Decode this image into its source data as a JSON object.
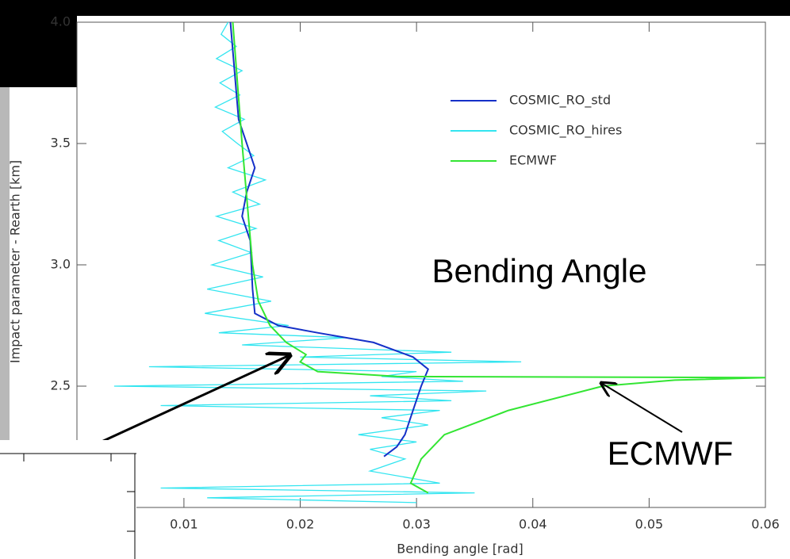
{
  "chart_data": {
    "type": "line",
    "x_label": "Bending angle [rad]",
    "y_label": "Impact parameter - Rearth [km]",
    "xlim": [
      0.0008,
      0.06
    ],
    "xticks": [
      0.01,
      0.02,
      0.03,
      0.04,
      0.05,
      0.06
    ],
    "ylim": [
      2.0,
      4.0
    ],
    "yticks": [
      2.5,
      {
        "value": 3,
        "label": "3.0"
      },
      3.5,
      {
        "value": 4,
        "label": "4.0"
      }
    ],
    "legend": "upper right",
    "annotations": [
      "Bending Angle",
      "ECMWF"
    ],
    "series": [
      {
        "name": "COSMIC_RO_hires",
        "color": "#33e5f0",
        "x": [
          0.0138,
          0.0132,
          0.0145,
          0.0128,
          0.015,
          0.0131,
          0.0148,
          0.0127,
          0.0152,
          0.0133,
          0.0146,
          0.016,
          0.0138,
          0.017,
          0.0142,
          0.0165,
          0.0128,
          0.0162,
          0.013,
          0.0158,
          0.0124,
          0.0168,
          0.012,
          0.0175,
          0.0118,
          0.019,
          0.013,
          0.024,
          0.015,
          0.033,
          0.02,
          0.039,
          0.007,
          0.03,
          0.027,
          0.034,
          0.004,
          0.036,
          0.026,
          0.033,
          0.008,
          0.032,
          0.027,
          0.031,
          0.025,
          0.03,
          0.026,
          0.029,
          0.026,
          0.032,
          0.008,
          0.035,
          0.012,
          0.03
        ],
        "y": [
          4.0,
          3.95,
          3.9,
          3.85,
          3.8,
          3.75,
          3.7,
          3.65,
          3.6,
          3.55,
          3.5,
          3.45,
          3.4,
          3.35,
          3.3,
          3.25,
          3.2,
          3.15,
          3.1,
          3.05,
          3.0,
          2.95,
          2.9,
          2.85,
          2.8,
          2.75,
          2.72,
          2.7,
          2.67,
          2.64,
          2.62,
          2.6,
          2.58,
          2.56,
          2.54,
          2.52,
          2.5,
          2.48,
          2.46,
          2.44,
          2.42,
          2.4,
          2.37,
          2.34,
          2.3,
          2.27,
          2.24,
          2.2,
          2.15,
          2.1,
          2.08,
          2.06,
          2.04,
          2.02
        ]
      },
      {
        "name": "COSMIC_RO_std",
        "color": "#1530c8",
        "x": [
          0.014,
          0.0147,
          0.0161,
          0.0154,
          0.015,
          0.0157,
          0.0159,
          0.0161,
          0.0181,
          0.0215,
          0.0263,
          0.0297,
          0.031,
          0.0304,
          0.0297,
          0.029,
          0.0283,
          0.0272
        ],
        "y": [
          4.0,
          3.6,
          3.4,
          3.3,
          3.2,
          3.1,
          2.9,
          2.8,
          2.75,
          2.72,
          2.68,
          2.62,
          2.57,
          2.5,
          2.4,
          2.3,
          2.25,
          2.21
        ]
      },
      {
        "name": "ECMWF",
        "color": "#33e533",
        "x": [
          0.0142,
          0.015,
          0.0159,
          0.0164,
          0.0174,
          0.0188,
          0.0205,
          0.02,
          0.0215,
          0.0283,
          0.06,
          0.0522,
          0.046,
          0.0379,
          0.0324,
          0.0304,
          0.0295,
          0.031
        ],
        "y": [
          4.0,
          3.5,
          3.0,
          2.85,
          2.75,
          2.68,
          2.63,
          2.6,
          2.56,
          2.54,
          2.535,
          2.525,
          2.5,
          2.4,
          2.3,
          2.2,
          2.1,
          2.06
        ]
      }
    ]
  }
}
